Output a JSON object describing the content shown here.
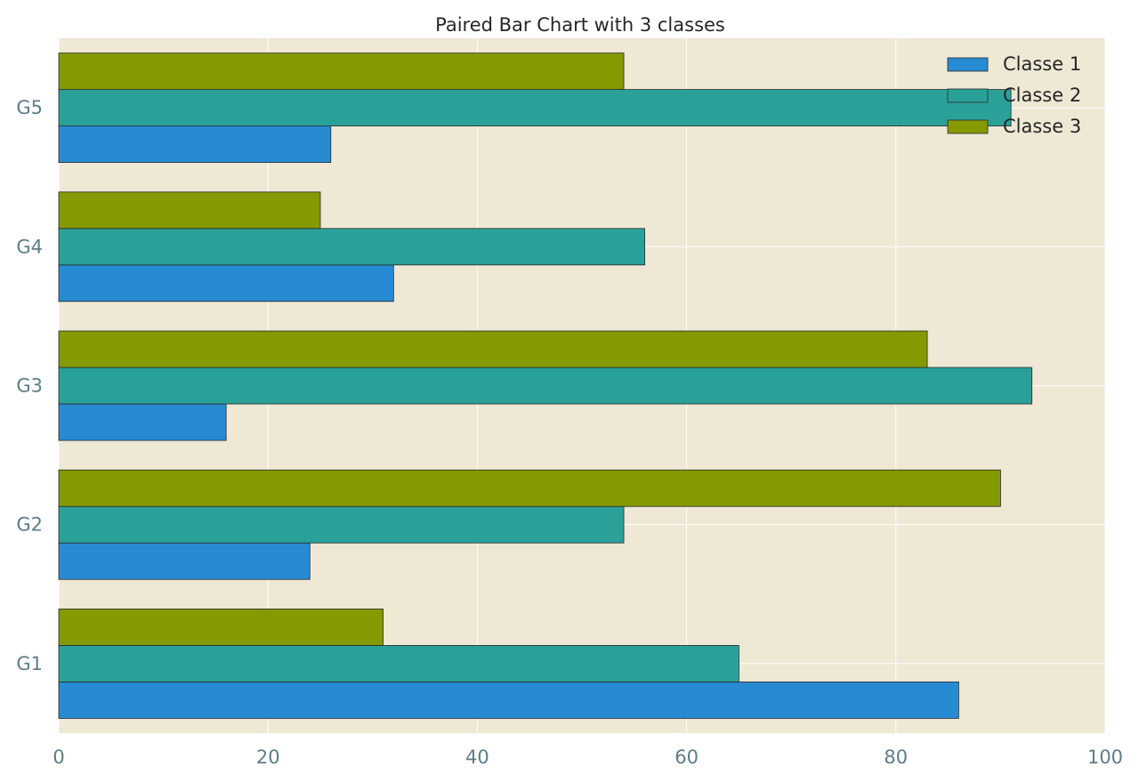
{
  "chart_data": {
    "type": "bar",
    "orientation": "horizontal",
    "title": "Paired Bar Chart with 3 classes",
    "xlabel": "",
    "ylabel": "",
    "categories": [
      "G1",
      "G2",
      "G3",
      "G4",
      "G5"
    ],
    "series": [
      {
        "name": "Classe 1",
        "color": "#268bd2",
        "values": [
          86,
          24,
          16,
          32,
          26
        ]
      },
      {
        "name": "Classe 2",
        "color": "#2aa198",
        "values": [
          65,
          54,
          93,
          56,
          91
        ]
      },
      {
        "name": "Classe 3",
        "color": "#859900",
        "values": [
          31,
          90,
          83,
          25,
          54
        ]
      }
    ],
    "xlim": [
      0,
      100
    ],
    "xticks": [
      "0",
      "20",
      "40",
      "60",
      "80",
      "100"
    ],
    "grid": true,
    "legend_position": "top-right",
    "background_color": "#eee8d5"
  }
}
